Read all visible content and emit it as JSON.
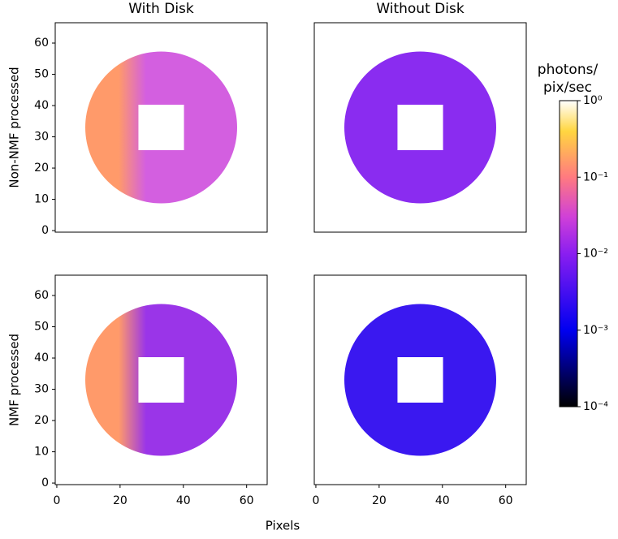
{
  "chart_data": [
    {
      "type": "image",
      "title": "With Disk",
      "ylabel": "Non-NMF processed",
      "xlim": [
        -0.5,
        66.5
      ],
      "ylim": [
        66.5,
        -0.5
      ],
      "xticks": [
        0,
        20,
        40,
        60
      ],
      "yticks": [
        0,
        10,
        20,
        30,
        40,
        50,
        60
      ],
      "color": "#d35fe0",
      "accent_color": "#ff9a6a"
    },
    {
      "type": "image",
      "title": "Without Disk",
      "xlim": [
        -0.5,
        66.5
      ],
      "ylim": [
        66.5,
        -0.5
      ],
      "xticks": [
        0,
        20,
        40,
        60
      ],
      "yticks": [
        0,
        10,
        20,
        30,
        40,
        50,
        60
      ],
      "color": "#8a2cf0",
      "accent_color": null
    },
    {
      "type": "image",
      "ylabel": "NMF processed",
      "xlim": [
        -0.5,
        66.5
      ],
      "ylim": [
        66.5,
        -0.5
      ],
      "xticks": [
        0,
        20,
        40,
        60
      ],
      "yticks": [
        0,
        10,
        20,
        30,
        40,
        50,
        60
      ],
      "color": "#9a35e8",
      "accent_color": "#ff9a6a"
    },
    {
      "type": "image",
      "xlim": [
        -0.5,
        66.5
      ],
      "ylim": [
        66.5,
        -0.5
      ],
      "xticks": [
        0,
        20,
        40,
        60
      ],
      "yticks": [
        0,
        10,
        20,
        30,
        40,
        50,
        60
      ],
      "color": "#3a18f0",
      "accent_color": null
    },
    {
      "type": "colorbar",
      "label": [
        "photons/",
        "pix/sec"
      ],
      "log": true,
      "ylim": [
        0.0001,
        1
      ],
      "yticks": [
        {
          "value": 1,
          "label": "10⁰"
        },
        {
          "value": 0.1,
          "label": "10⁻¹"
        },
        {
          "value": 0.01,
          "label": "10⁻²"
        },
        {
          "value": 0.001,
          "label": "10⁻³"
        },
        {
          "value": 0.0001,
          "label": "10⁻⁴"
        }
      ]
    }
  ],
  "xlabel": "Pixels"
}
